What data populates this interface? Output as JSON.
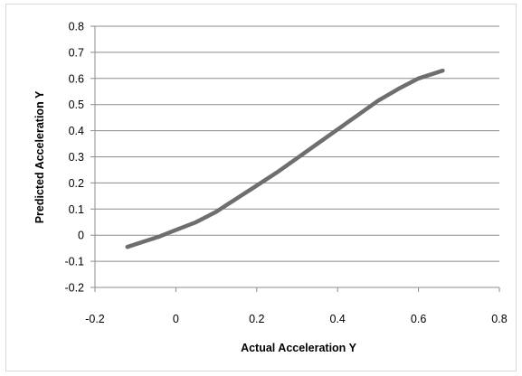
{
  "chart_data": {
    "type": "line",
    "title": "",
    "xlabel": "Actual Acceleration Y",
    "ylabel": "Predicted Acceleration Y",
    "xlim": [
      -0.2,
      0.8
    ],
    "ylim": [
      -0.2,
      0.8
    ],
    "x_ticks": [
      "-0.2",
      "0",
      "0.2",
      "0.4",
      "0.6",
      "0.8"
    ],
    "y_ticks": [
      "0.8",
      "0.7",
      "0.6",
      "0.5",
      "0.4",
      "0.3",
      "0.2",
      "0.1",
      "0",
      "-0.1",
      "-0.2"
    ],
    "grid": "horizontal",
    "legend": "none",
    "line_color": "#6e6e6e",
    "series": [
      {
        "x": [
          -0.12,
          -0.08,
          -0.04,
          0.0,
          0.05,
          0.1,
          0.15,
          0.2,
          0.25,
          0.3,
          0.35,
          0.4,
          0.45,
          0.5,
          0.55,
          0.6,
          0.66
        ],
        "y": [
          -0.045,
          -0.025,
          -0.005,
          0.02,
          0.05,
          0.09,
          0.14,
          0.19,
          0.24,
          0.295,
          0.35,
          0.405,
          0.46,
          0.515,
          0.56,
          0.6,
          0.63
        ]
      }
    ]
  }
}
